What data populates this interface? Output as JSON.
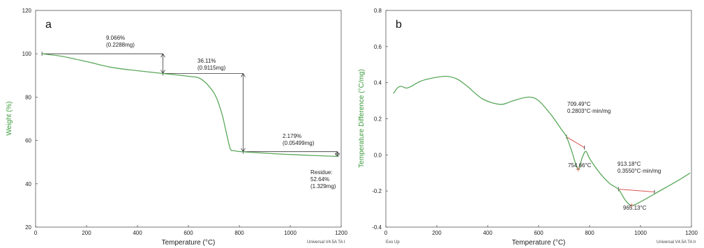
{
  "chart_data": [
    {
      "type": "line",
      "panel_label": "a",
      "xlabel": "Temperature (°C)",
      "ylabel": "Weight (%)",
      "xlim": [
        0,
        1200
      ],
      "ylim": [
        20,
        120
      ],
      "x_ticks": [
        "0",
        "200",
        "400",
        "600",
        "800",
        "1000",
        "1200"
      ],
      "y_ticks": [
        "20",
        "40",
        "60",
        "80",
        "100",
        "120"
      ],
      "colors": {
        "curve": "#5aa85a",
        "marker": "#333333"
      },
      "series": [
        {
          "x": [
            25,
            100,
            200,
            300,
            400,
            500,
            600,
            650,
            700,
            730,
            750,
            765,
            780,
            800,
            900,
            1000,
            1100,
            1190
          ],
          "values": [
            100,
            98.9,
            96.4,
            93.7,
            92.2,
            90.9,
            89.6,
            88.3,
            82,
            73,
            63,
            56,
            55.3,
            54.9,
            54.1,
            53.5,
            53.0,
            52.6
          ]
        }
      ],
      "annotations": [
        {
          "lines": [
            "9.066%",
            "(0.2288mg)"
          ]
        },
        {
          "lines": [
            "36.11%",
            "(0.9115mg)"
          ]
        },
        {
          "lines": [
            "2.179%",
            "(0.05499mg)"
          ]
        },
        {
          "lines": [
            "Residue:",
            "52.64%",
            "(1.329mg)"
          ]
        }
      ],
      "steps": [
        {
          "x_from": 25,
          "x_to": 500,
          "y_from": 100,
          "y_to": 90.93
        },
        {
          "x_from": 500,
          "x_to": 815,
          "y_from": 90.93,
          "y_to": 54.82
        },
        {
          "x_from": 815,
          "x_to": 1185,
          "y_from": 54.82,
          "y_to": 52.64
        }
      ],
      "corner_right": "Universal V4.5A TA I"
    },
    {
      "type": "line",
      "panel_label": "b",
      "xlabel": "Temperature (°C)",
      "ylabel": "Temperature Difference (°C/mg)",
      "xlim": [
        0,
        1200
      ],
      "ylim": [
        -0.4,
        0.8
      ],
      "x_ticks": [
        "0",
        "200",
        "400",
        "600",
        "800",
        "1000",
        "1200"
      ],
      "y_ticks": [
        "-0.4",
        "-0.2",
        "0.0",
        "0.2",
        "0.4",
        "0.6",
        "0.8"
      ],
      "colors": {
        "curve": "#5aa85a",
        "baseline": "#d9534f",
        "marker": "#333333"
      },
      "series": [
        {
          "x": [
            30,
            45,
            60,
            80,
            100,
            140,
            200,
            240,
            280,
            320,
            380,
            450,
            500,
            560,
            600,
            650,
            690,
            709.5,
            730,
            754.7,
            770,
            785,
            800,
            840,
            880,
            913.2,
            940,
            965.1,
            1000,
            1050,
            1100,
            1150,
            1195
          ],
          "values": [
            0.34,
            0.37,
            0.38,
            0.37,
            0.38,
            0.41,
            0.43,
            0.435,
            0.42,
            0.38,
            0.31,
            0.28,
            0.3,
            0.32,
            0.3,
            0.22,
            0.14,
            0.1,
            0.02,
            -0.08,
            -0.02,
            0.02,
            -0.02,
            -0.1,
            -0.16,
            -0.19,
            -0.25,
            -0.28,
            -0.26,
            -0.22,
            -0.18,
            -0.14,
            -0.1
          ]
        }
      ],
      "annotations": [
        {
          "lines": [
            "709.49°C",
            "0.2803°C·min/mg"
          ]
        },
        {
          "lines": [
            "754.66°C"
          ]
        },
        {
          "lines": [
            "913.18°C",
            "0.3550°C·min/mg"
          ]
        },
        {
          "lines": [
            "965.13°C"
          ]
        }
      ],
      "baselines": [
        {
          "x": [
            709.5,
            780
          ],
          "values": [
            0.1,
            0.04
          ]
        },
        {
          "x": [
            913.2,
            1055
          ],
          "values": [
            -0.19,
            -0.205
          ]
        }
      ],
      "corner_left": "Exo Up",
      "corner_right": "Universal V4.5A TA Ir"
    }
  ]
}
